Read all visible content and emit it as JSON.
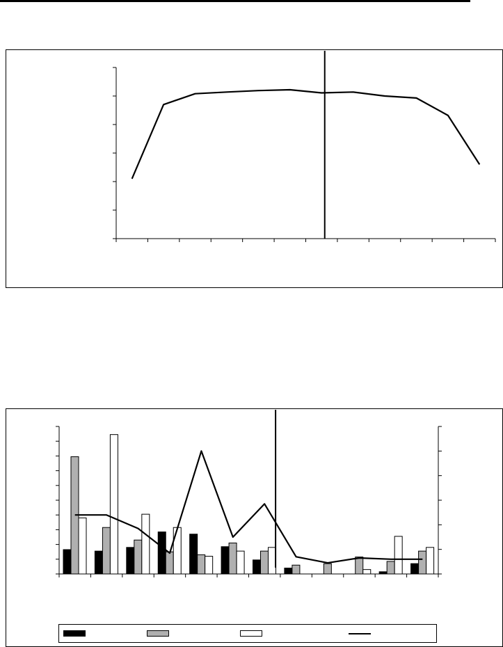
{
  "chart_data": [
    {
      "type": "line",
      "title": "",
      "xlabel": "",
      "ylabel": "",
      "x_count": 12,
      "ylim": [
        0,
        6
      ],
      "y_ticks": 6,
      "marker_after_index": 6,
      "series": [
        {
          "name": "",
          "values": [
            2.1,
            4.7,
            5.08,
            5.14,
            5.19,
            5.22,
            5.11,
            5.14,
            5.0,
            4.93,
            4.32,
            2.6
          ]
        }
      ]
    },
    {
      "type": "bar",
      "title": "",
      "xlabel": "",
      "ylabel": "",
      "category_count": 12,
      "ylim": [
        0,
        10
      ],
      "y_ticks": 10,
      "y2lim": [
        0,
        6
      ],
      "y2_ticks": 6,
      "marker_after_index": 6.85,
      "series": [
        {
          "name": "",
          "color": "#000000",
          "values": [
            1.65,
            1.55,
            1.8,
            2.85,
            2.7,
            1.85,
            0.95,
            0.4,
            0.0,
            0.0,
            0.15,
            0.7
          ]
        },
        {
          "name": "",
          "color": "#b0b0b0",
          "values": [
            7.95,
            3.15,
            2.3,
            1.5,
            1.3,
            2.1,
            1.55,
            0.6,
            0.7,
            1.15,
            0.85,
            1.55
          ]
        },
        {
          "name": "",
          "color": "#ffffff",
          "values": [
            3.8,
            9.45,
            4.05,
            3.15,
            1.2,
            1.55,
            1.8,
            0.0,
            0.0,
            0.3,
            2.55,
            1.8
          ]
        }
      ],
      "line_series": {
        "name": "",
        "axis": "right",
        "values": [
          2.4,
          2.4,
          1.85,
          0.85,
          5.0,
          1.5,
          2.85,
          0.7,
          0.45,
          0.65,
          0.6,
          0.6
        ]
      }
    }
  ]
}
